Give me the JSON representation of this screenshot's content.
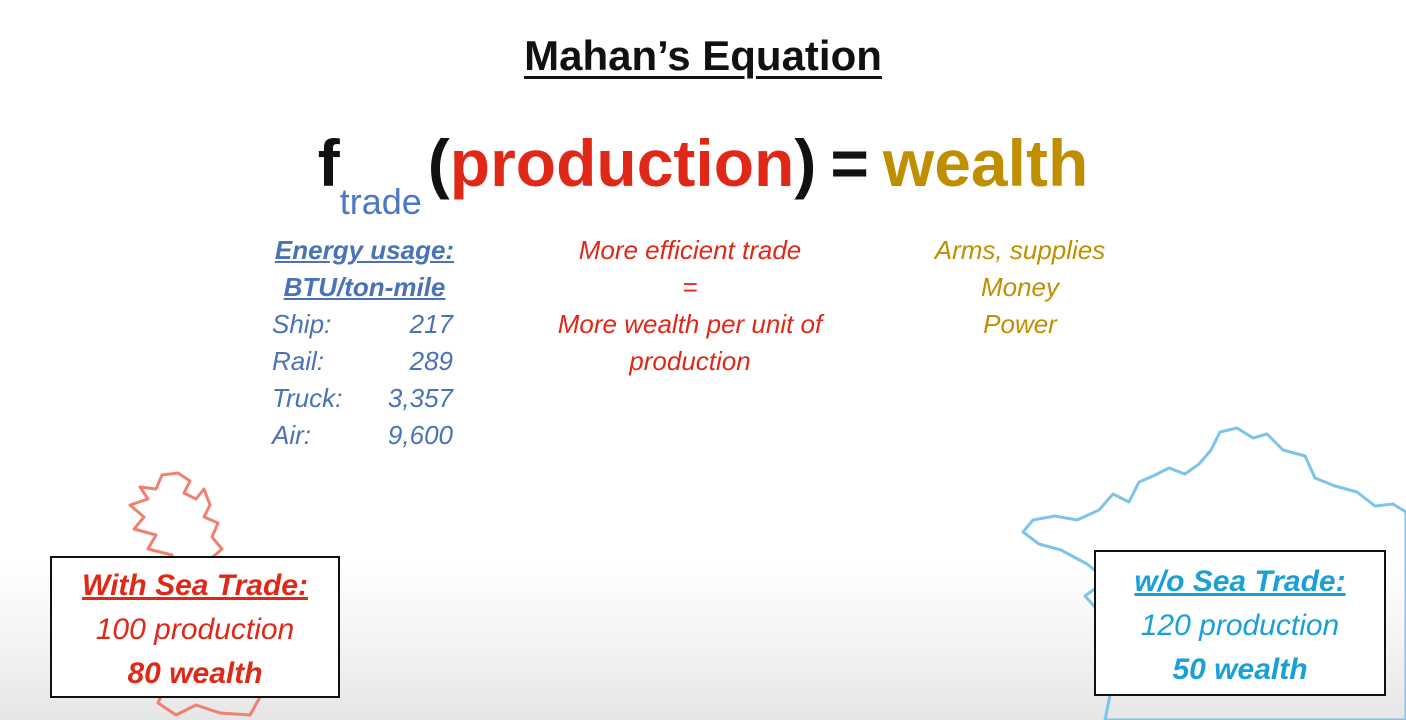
{
  "title": "Mahan’s Equation",
  "equation": {
    "f": "f",
    "subscript": "trade",
    "open_paren": "(",
    "production": "production",
    "close_paren": ")",
    "equals": "=",
    "wealth": "wealth"
  },
  "energy": {
    "header_line1": "Energy usage:",
    "header_line2": "BTU/ton-mile",
    "rows": [
      {
        "mode": "Ship:",
        "value": "217"
      },
      {
        "mode": "Rail:",
        "value": "289"
      },
      {
        "mode": "Truck:",
        "value": "3,357"
      },
      {
        "mode": "Air:",
        "value": "9,600"
      }
    ]
  },
  "middle": {
    "line1": "More efficient trade",
    "line2": "=",
    "line3": "More wealth per unit of",
    "line4": "production"
  },
  "right": {
    "line1": "Arms, supplies",
    "line2": "Money",
    "line3": "Power"
  },
  "box_left": {
    "heading": "With Sea Trade:",
    "production": "100 production",
    "wealth": "80 wealth"
  },
  "box_right": {
    "heading": "w/o Sea Trade:",
    "production": "120 production",
    "wealth": "50 wealth"
  },
  "colors": {
    "blue": "#4a72b8",
    "red": "#e02818",
    "gold": "#bf8f00",
    "light_blue": "#1aa0d8",
    "britain_outline": "#f08070",
    "france_outline": "#7cc4ec"
  }
}
